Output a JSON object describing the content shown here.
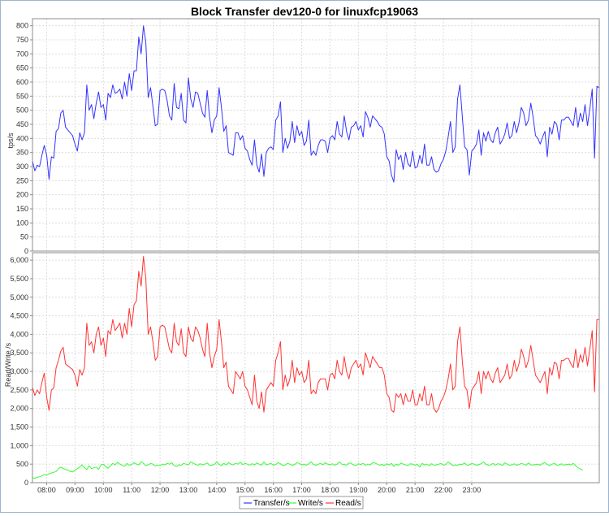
{
  "chart_data": [
    {
      "type": "line",
      "title": "Block Transfer dev120-0 for linuxfcp19063",
      "ylabel": "tps/s",
      "ylim": [
        0,
        825
      ],
      "yticks": [
        0,
        50,
        100,
        150,
        200,
        250,
        300,
        350,
        400,
        450,
        500,
        550,
        600,
        650,
        700,
        750,
        800
      ],
      "ytick_labels": [
        "0",
        "50",
        "100",
        "150",
        "200",
        "250",
        "300",
        "350",
        "400",
        "450",
        "500",
        "550",
        "600",
        "650",
        "700",
        "750",
        "800"
      ],
      "grid": true,
      "x": {
        "start": "07:30",
        "step_minutes": 5
      },
      "series": [
        {
          "name": "Transfer/s",
          "color": "#3333ff",
          "values": [
            320,
            285,
            305,
            300,
            340,
            375,
            340,
            255,
            335,
            330,
            425,
            435,
            490,
            500,
            440,
            430,
            420,
            410,
            380,
            355,
            420,
            395,
            420,
            590,
            500,
            520,
            470,
            525,
            565,
            510,
            520,
            465,
            560,
            545,
            590,
            560,
            565,
            575,
            540,
            600,
            550,
            630,
            570,
            640,
            640,
            760,
            700,
            800,
            740,
            545,
            580,
            515,
            445,
            450,
            570,
            575,
            570,
            535,
            480,
            465,
            595,
            510,
            505,
            560,
            465,
            455,
            615,
            540,
            510,
            565,
            560,
            525,
            490,
            475,
            570,
            475,
            420,
            465,
            480,
            580,
            510,
            425,
            445,
            350,
            345,
            340,
            420,
            420,
            395,
            410,
            365,
            355,
            325,
            305,
            395,
            305,
            280,
            345,
            265,
            350,
            365,
            370,
            360,
            465,
            480,
            530,
            350,
            400,
            365,
            390,
            460,
            385,
            445,
            410,
            425,
            375,
            390,
            465,
            340,
            355,
            340,
            375,
            395,
            395,
            390,
            350,
            400,
            410,
            395,
            460,
            415,
            405,
            480,
            425,
            395,
            440,
            445,
            460,
            430,
            445,
            405,
            495,
            475,
            440,
            480,
            470,
            460,
            445,
            440,
            415,
            335,
            320,
            270,
            245,
            360,
            325,
            340,
            290,
            350,
            310,
            300,
            355,
            295,
            300,
            340,
            310,
            380,
            305,
            305,
            335,
            290,
            280,
            285,
            310,
            325,
            355,
            405,
            460,
            350,
            370,
            540,
            590,
            480,
            370,
            360,
            270,
            355,
            365,
            380,
            430,
            340,
            420,
            390,
            425,
            395,
            385,
            420,
            440,
            380,
            395,
            415,
            455,
            400,
            410,
            460,
            420,
            455,
            510,
            490,
            445,
            465,
            525,
            475,
            410,
            400,
            380,
            405,
            425,
            335,
            440,
            415,
            460,
            450,
            395,
            465,
            465,
            475,
            475,
            460,
            445,
            510,
            440,
            490,
            460,
            520,
            445,
            505,
            575,
            330,
            585,
            580
          ]
        }
      ]
    },
    {
      "type": "line",
      "xlabel": "",
      "ylabel": "Read/Write /s",
      "ylim": [
        0,
        6200
      ],
      "yticks": [
        0,
        500,
        1000,
        1500,
        2000,
        2500,
        3000,
        3500,
        4000,
        4500,
        5000,
        5500,
        6000
      ],
      "ytick_labels": [
        "0",
        "500",
        "1,000",
        "1,500",
        "2,000",
        "2,500",
        "3,000",
        "3,500",
        "4,000",
        "4,500",
        "5,000",
        "5,500",
        "6,000"
      ],
      "xticks": [
        "08:00",
        "09:00",
        "10:00",
        "11:00",
        "12:00",
        "13:00",
        "14:00",
        "15:00",
        "16:00",
        "17:00",
        "18:00",
        "19:00",
        "20:00",
        "21:00",
        "22:00",
        "23:00"
      ],
      "x": {
        "start": "07:30",
        "step_minutes": 5
      },
      "grid": true,
      "legend": "bottom-center",
      "series": [
        {
          "name": "Write/s",
          "color": "#33ff33",
          "values": [
            130,
            120,
            145,
            160,
            180,
            220,
            200,
            240,
            260,
            280,
            300,
            380,
            420,
            380,
            360,
            340,
            300,
            290,
            330,
            380,
            420,
            480,
            400,
            350,
            460,
            380,
            400,
            420,
            360,
            480,
            500,
            430,
            390,
            450,
            520,
            480,
            550,
            500,
            470,
            440,
            520,
            470,
            490,
            540,
            500,
            480,
            570,
            520,
            460,
            480,
            520,
            500,
            450,
            470,
            460,
            500,
            480,
            520,
            500,
            540,
            460,
            440,
            480,
            470,
            520,
            500,
            480,
            560,
            530,
            490,
            470,
            510,
            480,
            500,
            530,
            470,
            470,
            490,
            560,
            500,
            460,
            520,
            480,
            540,
            500,
            480,
            520,
            500,
            550,
            490,
            520,
            500,
            470,
            510,
            480,
            530,
            500,
            470,
            560,
            480,
            500,
            520,
            470,
            490,
            540,
            510,
            460,
            480,
            520,
            500,
            470,
            490,
            540,
            520,
            480,
            500,
            470,
            510,
            560,
            490,
            470,
            500,
            520,
            480,
            540,
            500,
            480,
            510,
            470,
            500,
            560,
            500,
            490,
            470,
            530,
            520,
            480,
            460,
            510,
            490,
            520,
            470,
            500,
            480,
            540,
            530,
            500,
            470,
            490,
            460,
            510,
            480,
            520,
            440,
            500,
            470,
            530,
            500,
            480,
            460,
            510,
            500,
            470,
            490,
            420,
            520,
            480,
            500,
            460,
            510,
            470,
            480,
            500,
            520,
            470,
            490,
            560,
            510,
            460,
            480,
            470,
            500,
            490,
            530,
            470,
            480,
            520,
            500,
            470,
            490,
            510,
            560,
            500,
            470,
            480,
            520,
            470,
            510,
            500,
            460,
            540,
            500,
            470,
            480,
            510,
            470,
            490,
            520,
            500,
            470,
            530,
            480,
            480,
            490,
            500,
            470,
            520,
            540,
            490,
            460,
            500,
            520,
            470,
            480,
            510,
            470,
            490,
            500,
            480,
            520,
            460,
            400,
            370,
            340
          ]
        },
        {
          "name": "Read/s",
          "color": "#ff3333",
          "values": [
            2570,
            2350,
            2500,
            2400,
            2700,
            2950,
            2300,
            1950,
            2500,
            2550,
            3100,
            3300,
            3550,
            3650,
            3200,
            3150,
            3100,
            3050,
            2900,
            2600,
            3050,
            2900,
            3100,
            4300,
            3700,
            3800,
            3500,
            4000,
            4200,
            3700,
            3900,
            3400,
            4100,
            4000,
            4400,
            4100,
            4200,
            4300,
            3900,
            4300,
            4000,
            4700,
            4200,
            4800,
            4900,
            5700,
            5300,
            6100,
            5500,
            4000,
            4200,
            3800,
            3300,
            3400,
            4200,
            4250,
            4200,
            3900,
            3600,
            3500,
            4300,
            3800,
            3700,
            4150,
            3500,
            3400,
            4200,
            3900,
            3800,
            4200,
            4100,
            3900,
            3600,
            3400,
            4300,
            3500,
            3100,
            3400,
            3600,
            4400,
            3800,
            3100,
            3250,
            2600,
            2500,
            2400,
            3000,
            2900,
            2800,
            3000,
            2600,
            2500,
            2300,
            2100,
            2900,
            2200,
            2000,
            2450,
            1900,
            2500,
            2600,
            2700,
            2600,
            3300,
            3500,
            3800,
            2500,
            2900,
            2600,
            2800,
            3300,
            2700,
            3100,
            2900,
            3000,
            2700,
            2800,
            3300,
            2400,
            2500,
            2400,
            2700,
            2800,
            2800,
            2800,
            2500,
            2900,
            2950,
            2800,
            3300,
            3000,
            2900,
            3400,
            3000,
            2800,
            3100,
            3200,
            3300,
            3100,
            3200,
            2900,
            3500,
            3300,
            3100,
            3400,
            3300,
            3200,
            3100,
            3100,
            2900,
            2400,
            2300,
            1950,
            1900,
            2400,
            2300,
            2400,
            2100,
            2400,
            2200,
            2200,
            2500,
            2100,
            2100,
            2400,
            2200,
            2600,
            2100,
            2100,
            2400,
            2000,
            1900,
            2000,
            2200,
            2300,
            2500,
            2800,
            3200,
            2500,
            2600,
            3800,
            4200,
            3300,
            2600,
            2500,
            2000,
            2500,
            2600,
            2700,
            3000,
            2400,
            3000,
            2800,
            3000,
            2800,
            2700,
            2950,
            3100,
            2700,
            2800,
            2900,
            3200,
            2800,
            2900,
            3300,
            3000,
            3200,
            3600,
            3400,
            3100,
            3300,
            3700,
            3300,
            2900,
            2800,
            2700,
            2850,
            3000,
            2400,
            3100,
            2900,
            3250,
            3200,
            2800,
            3300,
            3300,
            3350,
            3350,
            3200,
            3100,
            3600,
            3100,
            3450,
            3250,
            3650,
            3150,
            3600,
            4100,
            2450,
            4400,
            4400
          ]
        }
      ]
    }
  ]
}
